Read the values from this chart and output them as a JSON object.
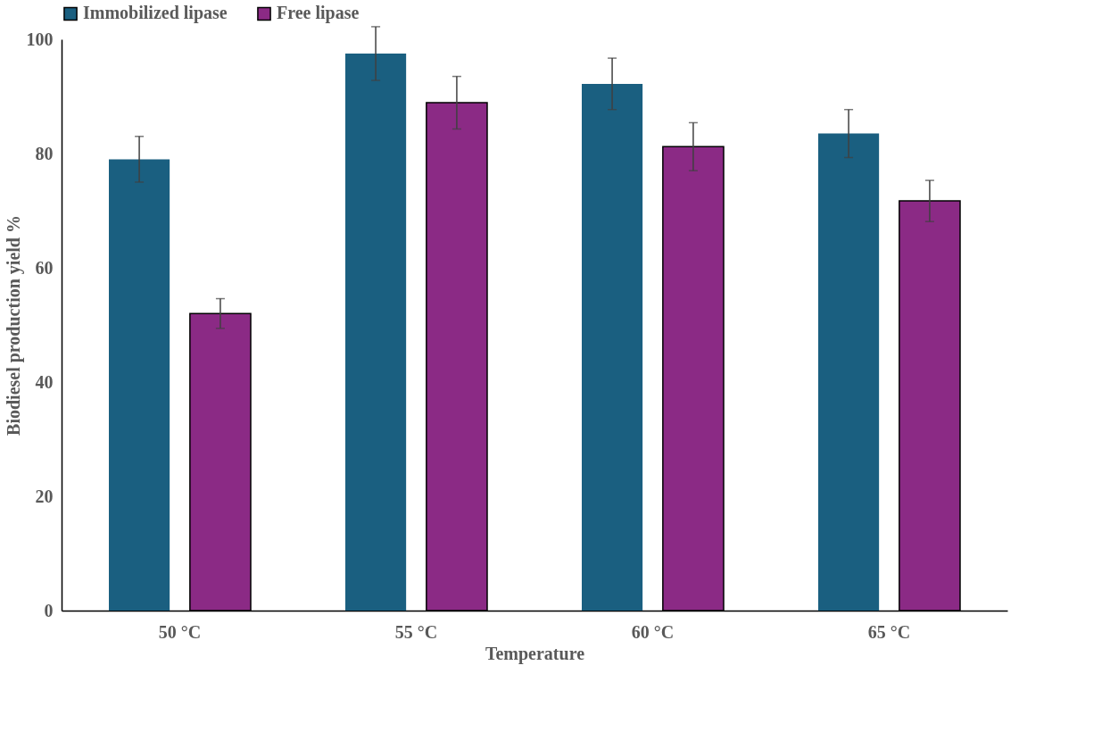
{
  "chart_data": {
    "type": "bar",
    "xlabel": "Temperature",
    "ylabel": "Biodiesel production yield %",
    "categories": [
      "50 °C",
      "55 °C",
      "60 °C",
      "65 °C"
    ],
    "series": [
      {
        "name": "Immobilized lipase",
        "color": "#1a5f80",
        "values": [
          79,
          97.5,
          92.2,
          83.5
        ],
        "errors": [
          4,
          4.7,
          4.5,
          4.2
        ]
      },
      {
        "name": "Free lipase",
        "color": "#8b2a85",
        "values": [
          52,
          88.9,
          81.2,
          71.7
        ],
        "errors": [
          2.6,
          4.6,
          4.2,
          3.6
        ]
      }
    ],
    "ylim": [
      0,
      100
    ],
    "yticks": [
      0,
      20,
      40,
      60,
      80,
      100
    ],
    "grid": false,
    "legend": "top"
  }
}
